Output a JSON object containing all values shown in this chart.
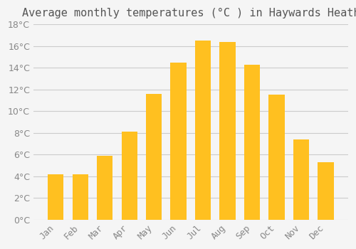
{
  "title": "Average monthly temperatures (°C ) in Haywards Heath",
  "months": [
    "Jan",
    "Feb",
    "Mar",
    "Apr",
    "May",
    "Jun",
    "Jul",
    "Aug",
    "Sep",
    "Oct",
    "Nov",
    "Dec"
  ],
  "temperatures": [
    4.2,
    4.2,
    5.9,
    8.1,
    11.6,
    14.5,
    16.5,
    16.4,
    14.3,
    11.5,
    7.4,
    5.3
  ],
  "bar_color_top": "#FFC020",
  "bar_color_bottom": "#FFD060",
  "background_color": "#F5F5F5",
  "grid_color": "#CCCCCC",
  "text_color": "#888888",
  "ylim": [
    0,
    18
  ],
  "yticks": [
    0,
    2,
    4,
    6,
    8,
    10,
    12,
    14,
    16,
    18
  ],
  "title_fontsize": 11,
  "tick_fontsize": 9
}
